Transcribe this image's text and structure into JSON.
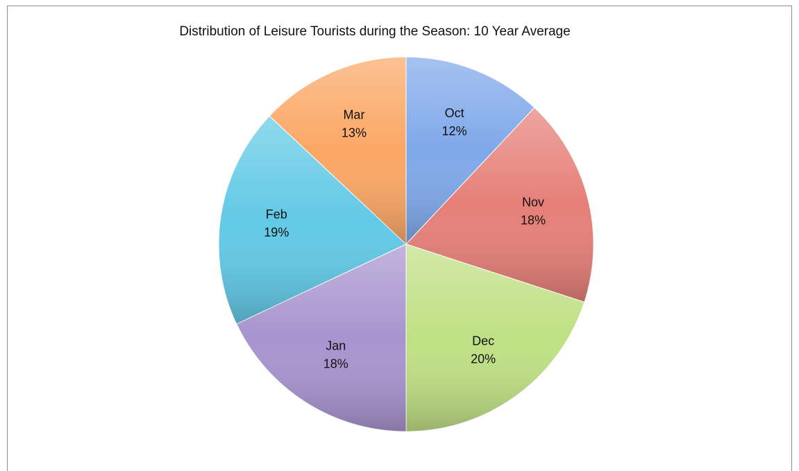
{
  "chart_data": {
    "type": "pie",
    "title": "Distribution of Leisure Tourists during the Season: 10 Year Average",
    "categories": [
      "Oct",
      "Nov",
      "Dec",
      "Jan",
      "Feb",
      "Mar"
    ],
    "values": [
      12,
      18,
      20,
      18,
      19,
      13
    ],
    "value_labels": [
      "12%",
      "18%",
      "20%",
      "18%",
      "19%",
      "13%"
    ],
    "colors": [
      "#7fa8ea",
      "#e67f78",
      "#bfe084",
      "#a894cf",
      "#62c9e6",
      "#fba765"
    ]
  }
}
